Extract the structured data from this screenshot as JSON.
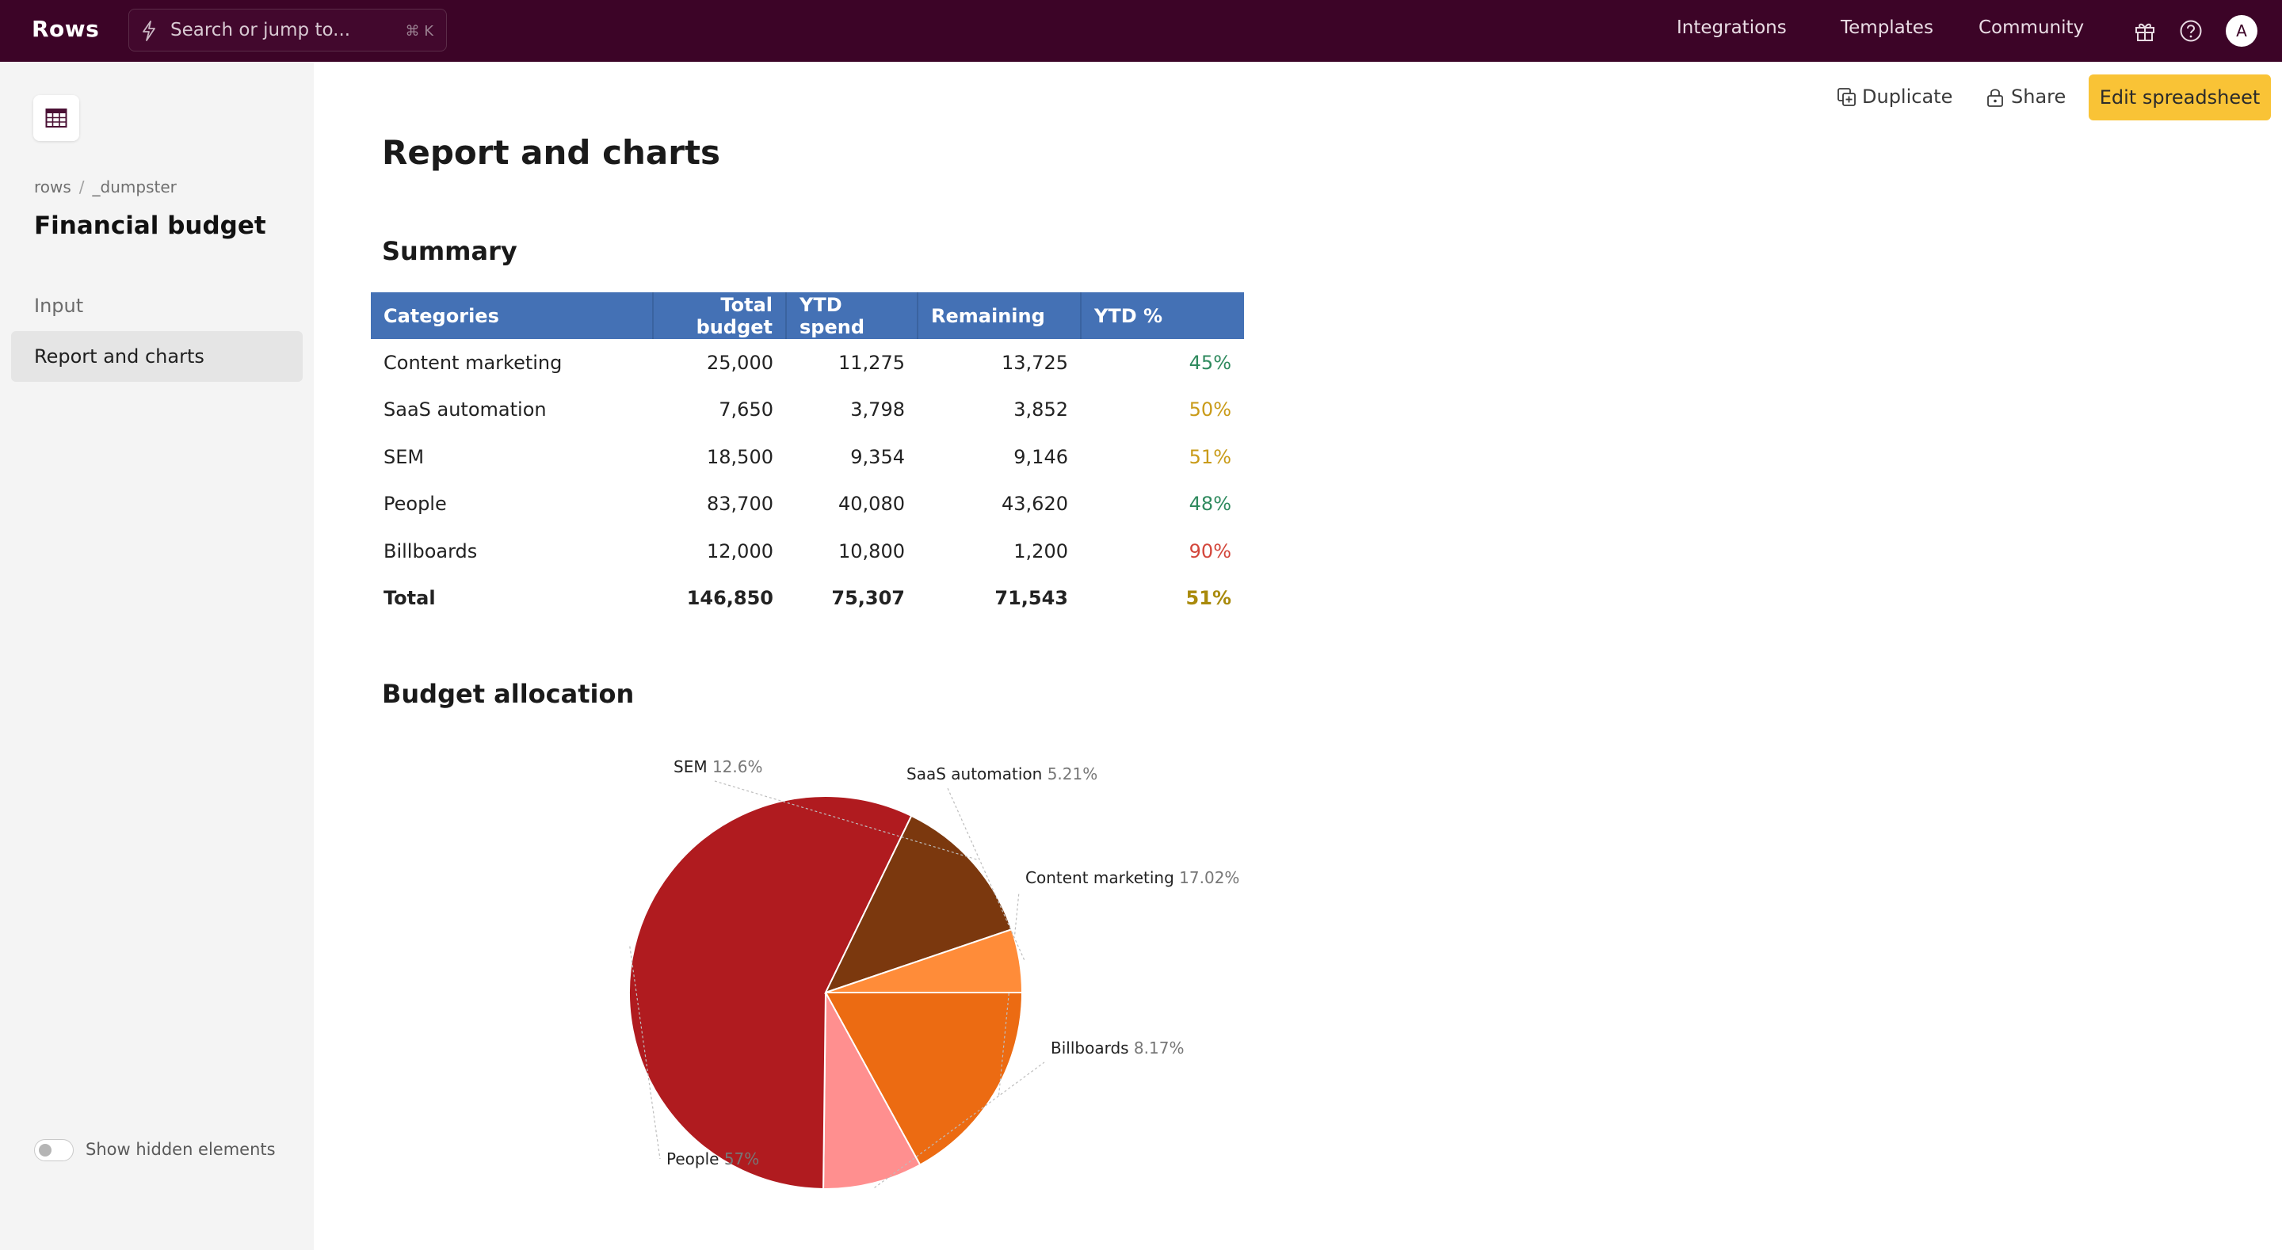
{
  "app": {
    "logo": "Rows",
    "search_placeholder": "Search or jump to...",
    "search_shortcut": "⌘ K",
    "nav": [
      "Integrations",
      "Templates",
      "Community"
    ],
    "icons": [
      "gift-icon",
      "help-icon"
    ],
    "avatar_initial": "A"
  },
  "sidebar": {
    "breadcrumb": [
      "rows",
      "_dumpster"
    ],
    "title": "Financial budget",
    "pages": [
      {
        "label": "Input",
        "active": false
      },
      {
        "label": "Report and charts",
        "active": true
      }
    ],
    "toggle_label": "Show hidden elements"
  },
  "actions": {
    "duplicate": "Duplicate",
    "share": "Share",
    "edit": "Edit spreadsheet"
  },
  "page": {
    "title": "Report and charts",
    "summary_title": "Summary",
    "chart_title": "Budget allocation"
  },
  "summary_table": {
    "headers": [
      "Categories",
      "Total budget",
      "YTD spend",
      "Remaining",
      "YTD %"
    ],
    "rows": [
      {
        "category": "Content marketing",
        "total": "25,000",
        "ytd": "11,275",
        "remaining": "13,725",
        "pct": "45%",
        "pct_color": "#2f8a5e"
      },
      {
        "category": "SaaS automation",
        "total": "7,650",
        "ytd": "3,798",
        "remaining": "3,852",
        "pct": "50%",
        "pct_color": "#c99b19"
      },
      {
        "category": "SEM",
        "total": "18,500",
        "ytd": "9,354",
        "remaining": "9,146",
        "pct": "51%",
        "pct_color": "#c99b19"
      },
      {
        "category": "People",
        "total": "83,700",
        "ytd": "40,080",
        "remaining": "43,620",
        "pct": "48%",
        "pct_color": "#2f8a5e"
      },
      {
        "category": "Billboards",
        "total": "12,000",
        "ytd": "10,800",
        "remaining": "1,200",
        "pct": "90%",
        "pct_color": "#d3463b"
      }
    ],
    "total": {
      "category": "Total",
      "total": "146,850",
      "ytd": "75,307",
      "remaining": "71,543",
      "pct": "51%",
      "pct_color": "#a98a0c"
    }
  },
  "chart_data": {
    "type": "pie",
    "title": "Budget allocation",
    "slices": [
      {
        "name": "Content marketing",
        "value": 17.02,
        "label": "17.02%",
        "color": "#ec6b12"
      },
      {
        "name": "Billboards",
        "value": 8.17,
        "label": "8.17%",
        "color": "#ff8f8f"
      },
      {
        "name": "People",
        "value": 57,
        "label": "57%",
        "color": "#b01b1f"
      },
      {
        "name": "SEM",
        "value": 12.6,
        "label": "12.6%",
        "color": "#7b380e"
      },
      {
        "name": "SaaS automation",
        "value": 5.21,
        "label": "5.21%",
        "color": "#ff8c39"
      }
    ],
    "start_angle_deg": 90,
    "direction": "clockwise-from-3-oclock"
  }
}
